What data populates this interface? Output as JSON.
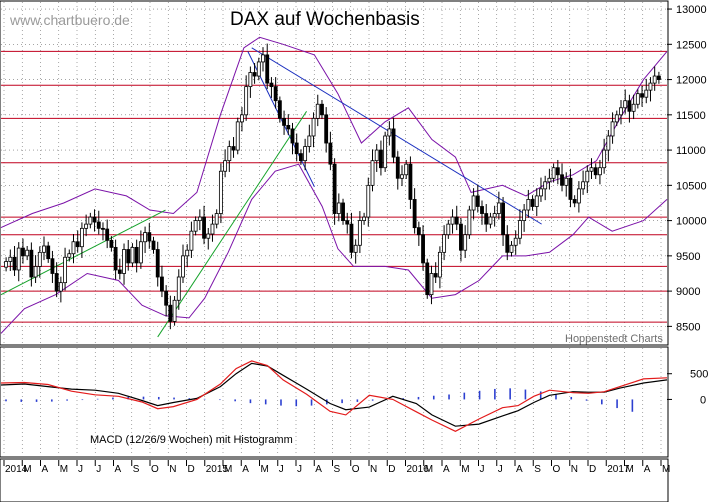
{
  "watermark": "www.chartbuero.de",
  "credit": "Hoppenstedt Charts",
  "colors": {
    "background": "#ffffff",
    "candle": "#000000",
    "candle_up_fill": "#ffffff",
    "support_line": "#c0001e",
    "trend_line": "#1a2fbf",
    "uptrend_line": "#16a32b",
    "bollinger": "#7b12a8",
    "macd_line": "#000000",
    "signal_line": "#e31b1b",
    "histogram": "#2c3fd0",
    "axis_text": "#000000",
    "grid": "#6f6f6f"
  },
  "chart_data": [
    {
      "type": "candlestick",
      "title": "DAX auf Wochenbasis",
      "xlabel": "",
      "ylabel": "",
      "x_ticks": [
        "2014",
        "M",
        "A",
        "M",
        "J",
        "J",
        "A",
        "S",
        "O",
        "N",
        "D",
        "2015",
        "M",
        "A",
        "M",
        "J",
        "J",
        "A",
        "S",
        "O",
        "N",
        "D",
        "2016",
        "M",
        "A",
        "M",
        "J",
        "J",
        "A",
        "S",
        "O",
        "N",
        "D",
        "2017",
        "M",
        "A",
        "M"
      ],
      "x_range_weeks": [
        0,
        170
      ],
      "y_ticks": [
        8500,
        9000,
        9500,
        10000,
        10500,
        11000,
        11500,
        12000,
        12500,
        13000
      ],
      "ylim": [
        8250,
        13100
      ],
      "horizontal_support_resistance": [
        8560,
        9000,
        9350,
        9800,
        10050,
        10820,
        11450,
        11920,
        12400
      ],
      "trend_lines": [
        {
          "color_name": "trend_line",
          "points": [
            [
              64,
              12450
            ],
            [
              138,
              9950
            ]
          ]
        },
        {
          "color_name": "trend_line",
          "points": [
            [
              63,
              12400
            ],
            [
              80,
              10480
            ]
          ]
        },
        {
          "color_name": "uptrend_line",
          "points": [
            [
              0,
              8950
            ],
            [
              42,
              10150
            ]
          ]
        },
        {
          "color_name": "uptrend_line",
          "points": [
            [
              40,
              8350
            ],
            [
              78,
              11550
            ]
          ]
        }
      ],
      "bollinger_bands": {
        "upper": [
          [
            0,
            9900
          ],
          [
            8,
            10100
          ],
          [
            16,
            10250
          ],
          [
            24,
            10450
          ],
          [
            32,
            10350
          ],
          [
            38,
            10150
          ],
          [
            44,
            10100
          ],
          [
            50,
            10400
          ],
          [
            56,
            11500
          ],
          [
            62,
            12450
          ],
          [
            66,
            12600
          ],
          [
            72,
            12500
          ],
          [
            80,
            12350
          ],
          [
            86,
            11800
          ],
          [
            92,
            11100
          ],
          [
            98,
            11400
          ],
          [
            104,
            11600
          ],
          [
            110,
            11150
          ],
          [
            116,
            10900
          ],
          [
            120,
            10400
          ],
          [
            128,
            10500
          ],
          [
            134,
            10350
          ],
          [
            140,
            10550
          ],
          [
            146,
            10650
          ],
          [
            152,
            10850
          ],
          [
            158,
            11450
          ],
          [
            164,
            12000
          ],
          [
            170,
            12400
          ]
        ],
        "lower": [
          [
            0,
            8400
          ],
          [
            6,
            8750
          ],
          [
            14,
            8950
          ],
          [
            22,
            9250
          ],
          [
            30,
            9150
          ],
          [
            36,
            8800
          ],
          [
            42,
            8650
          ],
          [
            48,
            8620
          ],
          [
            52,
            8900
          ],
          [
            58,
            9550
          ],
          [
            64,
            10300
          ],
          [
            70,
            10700
          ],
          [
            76,
            10800
          ],
          [
            82,
            10200
          ],
          [
            86,
            9600
          ],
          [
            90,
            9350
          ],
          [
            98,
            9350
          ],
          [
            104,
            9300
          ],
          [
            110,
            8900
          ],
          [
            116,
            8950
          ],
          [
            122,
            9150
          ],
          [
            128,
            9500
          ],
          [
            134,
            9500
          ],
          [
            140,
            9550
          ],
          [
            146,
            9800
          ],
          [
            150,
            10050
          ],
          [
            156,
            9850
          ],
          [
            164,
            10000
          ],
          [
            170,
            10300
          ]
        ],
        "middle_series": [
          [
            0,
            9100
          ],
          [
            10,
            9350
          ],
          [
            20,
            9700
          ],
          [
            30,
            9550
          ],
          [
            38,
            9550
          ],
          [
            44,
            9450
          ],
          [
            50,
            9700
          ],
          [
            58,
            10650
          ],
          [
            64,
            11450
          ],
          [
            70,
            11550
          ],
          [
            78,
            11250
          ],
          [
            84,
            10600
          ],
          [
            90,
            10250
          ],
          [
            98,
            10500
          ],
          [
            104,
            10400
          ],
          [
            110,
            10000
          ],
          [
            116,
            9800
          ],
          [
            124,
            9900
          ],
          [
            132,
            9900
          ],
          [
            140,
            10100
          ],
          [
            148,
            10350
          ],
          [
            156,
            10650
          ],
          [
            164,
            11050
          ],
          [
            170,
            11400
          ]
        ]
      },
      "weekly_closes": [
        9420,
        9480,
        9300,
        9610,
        9500,
        9580,
        9200,
        9350,
        9550,
        9640,
        9460,
        9250,
        9000,
        9120,
        9480,
        9530,
        9700,
        9630,
        9890,
        9950,
        10050,
        9980,
        9890,
        9880,
        9720,
        9620,
        9300,
        9250,
        9590,
        9400,
        9620,
        9400,
        9700,
        9830,
        9710,
        9590,
        9200,
        9000,
        8800,
        8570,
        8870,
        9200,
        9500,
        9580,
        9850,
        10000,
        10050,
        9750,
        9810,
        9950,
        10100,
        10700,
        10850,
        11050,
        11000,
        11400,
        11500,
        11900,
        12100,
        12050,
        12250,
        12350,
        11950,
        11900,
        11700,
        11450,
        11350,
        11300,
        11100,
        10950,
        10850,
        11050,
        11200,
        11450,
        11650,
        11500,
        11100,
        10800,
        10100,
        10250,
        10000,
        9950,
        9550,
        9650,
        10000,
        10050,
        10500,
        10850,
        11000,
        10750,
        11200,
        11300,
        10900,
        10600,
        10650,
        10800,
        10300,
        9900,
        9800,
        9400,
        8950,
        9250,
        9200,
        9550,
        9800,
        9950,
        10050,
        9950,
        9580,
        9800,
        10150,
        10350,
        10200,
        10100,
        9950,
        10050,
        10100,
        10250,
        9800,
        9550,
        9650,
        9750,
        10000,
        10150,
        10300,
        10200,
        10350,
        10450,
        10550,
        10600,
        10750,
        10650,
        10500,
        10600,
        10300,
        10250,
        10450,
        10550,
        10700,
        10750,
        10650,
        10750,
        11000,
        11200,
        11400,
        11500,
        11600,
        11700,
        11550,
        11650,
        11800,
        11750,
        11850,
        11950,
        12050,
        12000
      ]
    },
    {
      "type": "line",
      "title": "MACD (12/26/9 Wochen) mit Histogramm",
      "xlabel": "",
      "ylabel": "",
      "y_ticks": [
        500,
        0
      ],
      "ylim": [
        -1100,
        1000
      ],
      "series": [
        {
          "name": "",
          "color_name": "macd_line",
          "points": [
            [
              0,
              280
            ],
            [
              6,
              300
            ],
            [
              12,
              250
            ],
            [
              18,
              200
            ],
            [
              24,
              180
            ],
            [
              30,
              120
            ],
            [
              36,
              -20
            ],
            [
              40,
              -120
            ],
            [
              44,
              -60
            ],
            [
              50,
              20
            ],
            [
              56,
              250
            ],
            [
              60,
              500
            ],
            [
              64,
              700
            ],
            [
              68,
              650
            ],
            [
              72,
              470
            ],
            [
              78,
              200
            ],
            [
              84,
              -80
            ],
            [
              88,
              -200
            ],
            [
              94,
              -150
            ],
            [
              100,
              60
            ],
            [
              106,
              -80
            ],
            [
              110,
              -300
            ],
            [
              116,
              -520
            ],
            [
              122,
              -480
            ],
            [
              128,
              -320
            ],
            [
              132,
              -220
            ],
            [
              136,
              -60
            ],
            [
              140,
              80
            ],
            [
              146,
              150
            ],
            [
              150,
              140
            ],
            [
              154,
              140
            ],
            [
              158,
              220
            ],
            [
              164,
              320
            ],
            [
              170,
              380
            ]
          ]
        },
        {
          "name": "",
          "color_name": "signal_line",
          "points": [
            [
              0,
              320
            ],
            [
              6,
              330
            ],
            [
              12,
              290
            ],
            [
              18,
              160
            ],
            [
              24,
              90
            ],
            [
              30,
              60
            ],
            [
              36,
              -50
            ],
            [
              40,
              -180
            ],
            [
              44,
              -140
            ],
            [
              50,
              0
            ],
            [
              56,
              300
            ],
            [
              60,
              600
            ],
            [
              64,
              750
            ],
            [
              68,
              660
            ],
            [
              72,
              380
            ],
            [
              78,
              100
            ],
            [
              84,
              -230
            ],
            [
              88,
              -300
            ],
            [
              94,
              80
            ],
            [
              100,
              0
            ],
            [
              106,
              -240
            ],
            [
              110,
              -400
            ],
            [
              116,
              -620
            ],
            [
              122,
              -380
            ],
            [
              128,
              -160
            ],
            [
              132,
              -120
            ],
            [
              136,
              60
            ],
            [
              140,
              180
            ],
            [
              146,
              130
            ],
            [
              150,
              120
            ],
            [
              154,
              150
            ],
            [
              158,
              250
            ],
            [
              164,
              400
            ],
            [
              170,
              420
            ]
          ]
        }
      ],
      "histogram": [
        -30,
        -40,
        -40,
        -35,
        -20,
        -10,
        10,
        30,
        40,
        45,
        40,
        30,
        20,
        10,
        -10,
        -30,
        -60,
        -80,
        -100,
        -110,
        -100,
        -80,
        -60,
        -40,
        -20,
        0,
        20,
        40,
        60,
        80,
        110,
        140,
        170,
        180,
        160,
        130,
        80,
        40,
        -20,
        -80,
        -140,
        -200,
        -240,
        -220,
        -160,
        -100,
        -40,
        20,
        70,
        100,
        90,
        60,
        20,
        -20,
        -60,
        -100,
        -140,
        -170,
        -180,
        -160,
        -120,
        -60,
        0,
        40,
        60,
        60,
        50,
        40,
        30,
        20,
        10,
        0,
        -10,
        -20,
        -10,
        0,
        20,
        50,
        70,
        80,
        60,
        30,
        10
      ]
    }
  ]
}
